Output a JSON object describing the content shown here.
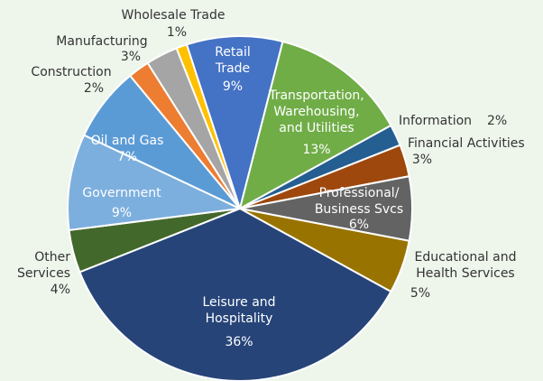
{
  "chart_data": {
    "type": "pie",
    "categories": [
      "Retail\nTrade",
      "Transportation,\nWarehousing,\nand Utilities",
      "Information",
      "Financial Activities",
      "Professional/\nBusiness Svcs",
      "Educational and\nHealth Services",
      "Leisure and\nHospitality",
      "Other\nServices",
      "Government",
      "Oil and Gas",
      "Construction",
      "Manufacturing",
      "Wholesale Trade"
    ],
    "values": [
      9,
      13,
      2,
      3,
      6,
      5,
      36,
      4,
      9,
      7,
      2,
      3,
      1
    ],
    "value_labels": [
      "9%",
      "13%",
      "2%",
      "3%",
      "6%",
      "5%",
      "36%",
      "4%",
      "9%",
      "7%",
      "2%",
      "3%",
      "1%"
    ],
    "colors": [
      "#4472c4",
      "#70ad47",
      "#255e91",
      "#9e480e",
      "#636363",
      "#997300",
      "#264478",
      "#43682b",
      "#7cafdd",
      "#5b9bd5",
      "#ed7d31",
      "#a5a5a5",
      "#ffc000"
    ]
  }
}
